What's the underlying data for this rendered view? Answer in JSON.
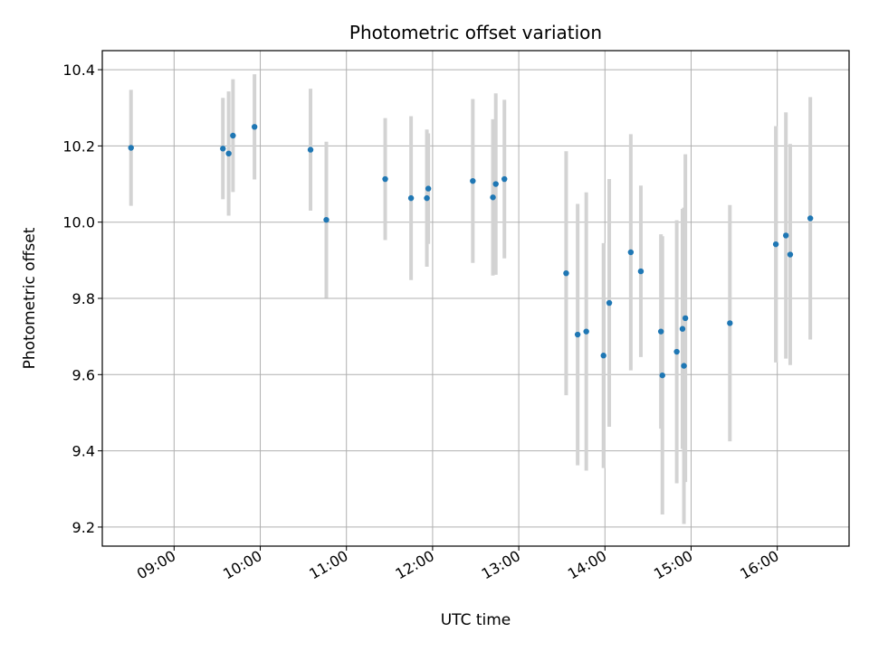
{
  "chart_data": {
    "type": "scatter",
    "title": "Photometric offset variation",
    "xlabel": "UTC time",
    "ylabel": "Photometric offset",
    "x_ticks": [
      "09:00",
      "10:00",
      "11:00",
      "12:00",
      "13:00",
      "14:00",
      "15:00",
      "16:00"
    ],
    "y_ticks": [
      "9.2",
      "9.4",
      "9.6",
      "9.8",
      "10.0",
      "10.2",
      "10.4"
    ],
    "xlim": [
      "08:10",
      "16:50"
    ],
    "ylim": [
      9.15,
      10.45
    ],
    "grid": true,
    "colors": {
      "point": "#1f77b4",
      "errorbar": "#d3d3d3",
      "grid": "#b0b0b0"
    },
    "points": [
      {
        "time": "08:30",
        "y": 10.195,
        "err": 0.152
      },
      {
        "time": "09:34",
        "y": 10.193,
        "err": 0.133
      },
      {
        "time": "09:38",
        "y": 10.18,
        "err": 0.163
      },
      {
        "time": "09:41",
        "y": 10.227,
        "err": 0.148
      },
      {
        "time": "09:56",
        "y": 10.25,
        "err": 0.138
      },
      {
        "time": "10:35",
        "y": 10.19,
        "err": 0.16
      },
      {
        "time": "10:46",
        "y": 10.006,
        "err": 0.205
      },
      {
        "time": "11:27",
        "y": 10.113,
        "err": 0.16
      },
      {
        "time": "11:45",
        "y": 10.063,
        "err": 0.215
      },
      {
        "time": "11:56",
        "y": 10.063,
        "err": 0.18
      },
      {
        "time": "11:57",
        "y": 10.088,
        "err": 0.145
      },
      {
        "time": "12:28",
        "y": 10.108,
        "err": 0.215
      },
      {
        "time": "12:42",
        "y": 10.065,
        "err": 0.205
      },
      {
        "time": "12:44",
        "y": 10.1,
        "err": 0.238
      },
      {
        "time": "12:50",
        "y": 10.113,
        "err": 0.208
      },
      {
        "time": "13:33",
        "y": 9.866,
        "err": 0.32
      },
      {
        "time": "13:41",
        "y": 9.705,
        "err": 0.343
      },
      {
        "time": "13:47",
        "y": 9.713,
        "err": 0.365
      },
      {
        "time": "13:59",
        "y": 9.65,
        "err": 0.295
      },
      {
        "time": "14:03",
        "y": 9.788,
        "err": 0.325
      },
      {
        "time": "14:18",
        "y": 9.921,
        "err": 0.31
      },
      {
        "time": "14:25",
        "y": 9.871,
        "err": 0.225
      },
      {
        "time": "14:39",
        "y": 9.713,
        "err": 0.255
      },
      {
        "time": "14:40",
        "y": 9.598,
        "err": 0.365
      },
      {
        "time": "14:50",
        "y": 9.66,
        "err": 0.345
      },
      {
        "time": "14:54",
        "y": 9.72,
        "err": 0.315
      },
      {
        "time": "14:55",
        "y": 9.623,
        "err": 0.415
      },
      {
        "time": "14:56",
        "y": 9.748,
        "err": 0.43
      },
      {
        "time": "15:27",
        "y": 9.735,
        "err": 0.31
      },
      {
        "time": "15:59",
        "y": 9.942,
        "err": 0.31
      },
      {
        "time": "16:06",
        "y": 9.965,
        "err": 0.323
      },
      {
        "time": "16:09",
        "y": 9.915,
        "err": 0.29
      },
      {
        "time": "16:23",
        "y": 10.01,
        "err": 0.318
      }
    ]
  }
}
